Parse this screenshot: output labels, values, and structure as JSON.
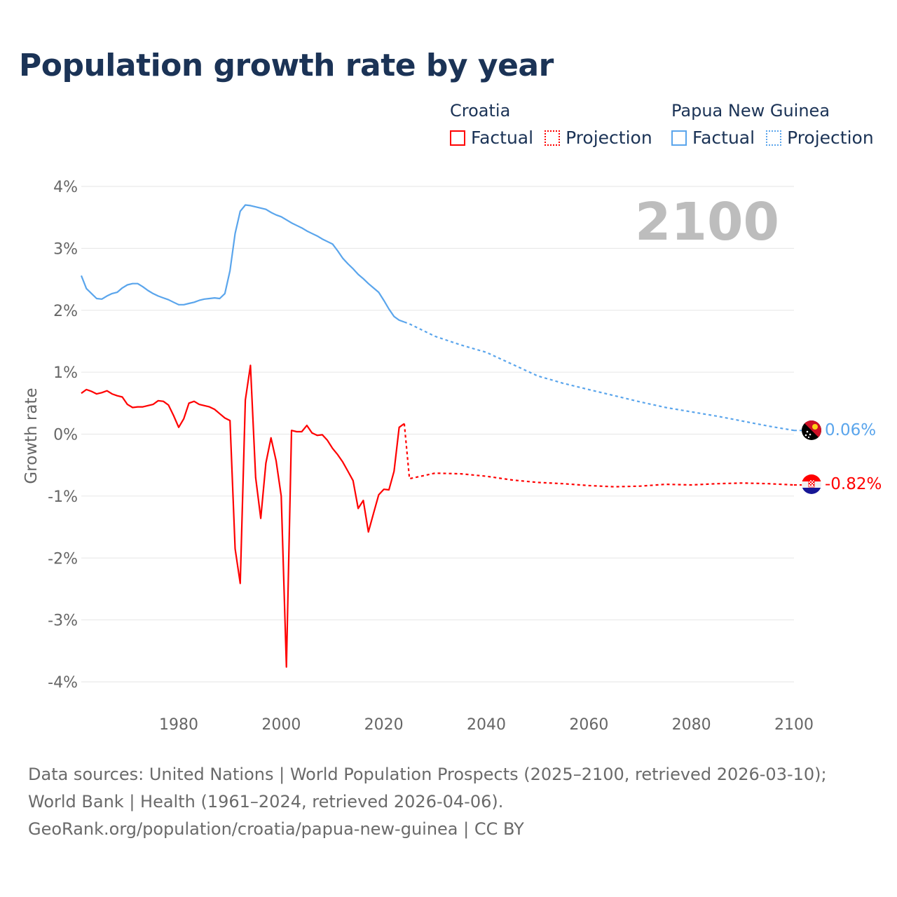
{
  "title": "Population growth rate by year",
  "legend": {
    "groups": [
      {
        "name": "Croatia",
        "factual": "Factual",
        "projection": "Projection",
        "color": "#ff0000"
      },
      {
        "name": "Papua New Guinea",
        "factual": "Factual",
        "projection": "Projection",
        "color": "#5aa5ec"
      }
    ]
  },
  "year_label": "2100",
  "end_labels": {
    "png": "0.06%",
    "croatia": "-0.82%"
  },
  "flags": {
    "png": "papua-new-guinea-flag-icon",
    "croatia": "croatia-flag-icon"
  },
  "source": {
    "line1": "Data sources: United Nations | World Population Prospects (2025–2100, retrieved 2026-03-10); World Bank | Health (1961–2024, retrieved 2026-04-06).",
    "line2": "GeoRank.org/population/croatia/papua-new-guinea | CC BY"
  },
  "chart_data": {
    "type": "line",
    "title": "Population growth rate by year",
    "xlabel": "",
    "ylabel": "Growth rate",
    "xlim": [
      1961,
      2100
    ],
    "ylim": [
      -4,
      4
    ],
    "xticks": [
      {
        "v": 1980,
        "label": "1980"
      },
      {
        "v": 2000,
        "label": "2000"
      },
      {
        "v": 2020,
        "label": "2020"
      },
      {
        "v": 2040,
        "label": "2040"
      },
      {
        "v": 2060,
        "label": "2060"
      },
      {
        "v": 2080,
        "label": "2080"
      },
      {
        "v": 2100,
        "label": "2100"
      }
    ],
    "yticks": [
      {
        "v": 4,
        "label": "4%"
      },
      {
        "v": 3,
        "label": "3%"
      },
      {
        "v": 2,
        "label": "2%"
      },
      {
        "v": 1,
        "label": "1%"
      },
      {
        "v": 0,
        "label": "0%"
      },
      {
        "v": -1,
        "label": "-1%"
      },
      {
        "v": -2,
        "label": "-2%"
      },
      {
        "v": -3,
        "label": "-3%"
      },
      {
        "v": -4,
        "label": "-4%"
      }
    ],
    "grid": true,
    "legend_position": "top-right",
    "series": [
      {
        "name": "Croatia",
        "color": "#ff0000",
        "factual": {
          "start_year": 1961,
          "values": [
            0.66,
            0.72,
            0.69,
            0.65,
            0.67,
            0.7,
            0.65,
            0.62,
            0.6,
            0.48,
            0.43,
            0.44,
            0.44,
            0.46,
            0.48,
            0.54,
            0.53,
            0.47,
            0.3,
            0.11,
            0.25,
            0.5,
            0.53,
            0.48,
            0.46,
            0.44,
            0.4,
            0.33,
            0.26,
            0.22,
            -1.85,
            -2.41,
            0.55,
            1.11,
            -0.7,
            -1.36,
            -0.47,
            -0.06,
            -0.43,
            -1.0,
            -3.76,
            0.06,
            0.04,
            0.04,
            0.14,
            0.02,
            -0.02,
            -0.01,
            -0.1,
            -0.23,
            -0.33,
            -0.45,
            -0.6,
            -0.75,
            -1.2,
            -1.07,
            -1.58,
            -1.28,
            -0.98,
            -0.89,
            -0.9,
            -0.6,
            0.11,
            0.17
          ]
        },
        "projection": {
          "x": [
            2024,
            2025,
            2030,
            2035,
            2040,
            2045,
            2050,
            2055,
            2060,
            2065,
            2070,
            2075,
            2080,
            2085,
            2090,
            2095,
            2100
          ],
          "values": [
            0.17,
            -0.72,
            -0.63,
            -0.64,
            -0.68,
            -0.74,
            -0.78,
            -0.8,
            -0.83,
            -0.85,
            -0.84,
            -0.81,
            -0.82,
            -0.8,
            -0.79,
            -0.8,
            -0.82
          ]
        },
        "end_value": -0.82
      },
      {
        "name": "Papua New Guinea",
        "color": "#5aa5ec",
        "factual": {
          "start_year": 1961,
          "values": [
            2.56,
            2.35,
            2.27,
            2.19,
            2.18,
            2.23,
            2.27,
            2.29,
            2.36,
            2.41,
            2.43,
            2.43,
            2.38,
            2.32,
            2.27,
            2.23,
            2.2,
            2.17,
            2.13,
            2.09,
            2.09,
            2.11,
            2.13,
            2.16,
            2.18,
            2.19,
            2.2,
            2.19,
            2.27,
            2.64,
            3.24,
            3.6,
            3.7,
            3.69,
            3.67,
            3.65,
            3.63,
            3.58,
            3.54,
            3.51,
            3.46,
            3.41,
            3.37,
            3.33,
            3.28,
            3.24,
            3.2,
            3.15,
            3.11,
            3.07,
            2.96,
            2.84,
            2.75,
            2.67,
            2.58,
            2.51,
            2.43,
            2.36,
            2.29,
            2.16,
            2.02,
            1.9,
            1.84,
            1.81
          ]
        },
        "projection": {
          "x": [
            2024,
            2025,
            2030,
            2035,
            2040,
            2045,
            2050,
            2055,
            2060,
            2065,
            2070,
            2075,
            2080,
            2085,
            2090,
            2095,
            2100
          ],
          "values": [
            1.81,
            1.78,
            1.58,
            1.44,
            1.32,
            1.13,
            0.94,
            0.82,
            0.72,
            0.62,
            0.52,
            0.43,
            0.36,
            0.29,
            0.21,
            0.13,
            0.06
          ]
        },
        "end_value": 0.06
      }
    ]
  }
}
